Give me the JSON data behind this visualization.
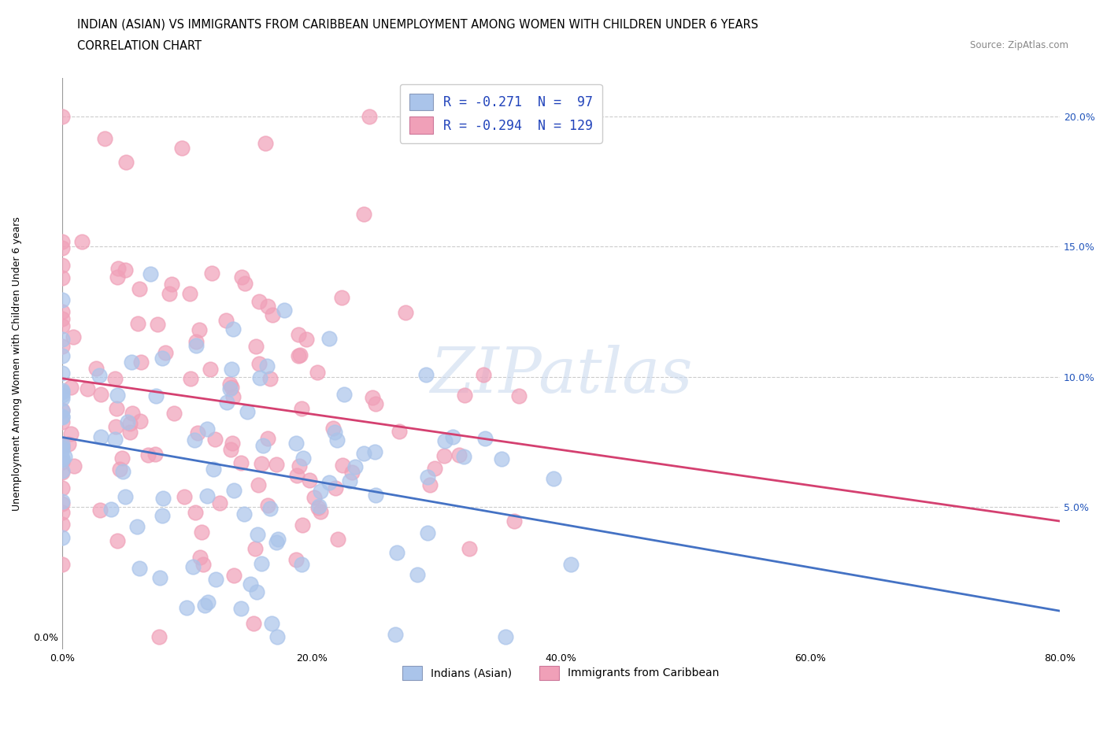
{
  "title_line1": "INDIAN (ASIAN) VS IMMIGRANTS FROM CARIBBEAN UNEMPLOYMENT AMONG WOMEN WITH CHILDREN UNDER 6 YEARS",
  "title_line2": "CORRELATION CHART",
  "source": "Source: ZipAtlas.com",
  "ylabel": "Unemployment Among Women with Children Under 6 years",
  "xlabel_ticks": [
    "0.0%",
    "20.0%",
    "40.0%",
    "60.0%",
    "80.0%"
  ],
  "ylabel_ticks_left": [
    "0.0%"
  ],
  "ylabel_ticks_left_vals": [
    0.0
  ],
  "right_yticks": [
    "5.0%",
    "10.0%",
    "15.0%",
    "20.0%"
  ],
  "right_ytick_vals": [
    0.05,
    0.1,
    0.15,
    0.2
  ],
  "legend_entries": [
    {
      "label": "R = -0.271  N =  97",
      "color": "#aec6f0"
    },
    {
      "label": "R = -0.294  N = 129",
      "color": "#f4a7b9"
    }
  ],
  "legend_labels_bottom": [
    "Indians (Asian)",
    "Immigrants from Caribbean"
  ],
  "watermark": "ZIPatlas",
  "blue_dot_color": "#aac4ea",
  "pink_dot_color": "#f0a0b8",
  "blue_line_color": "#4472c4",
  "pink_line_color": "#d44070",
  "title_fontsize": 11,
  "tick_fontsize": 9,
  "xlim": [
    0.0,
    0.8
  ],
  "ylim": [
    -0.005,
    0.215
  ],
  "xtick_vals": [
    0.0,
    0.2,
    0.4,
    0.6,
    0.8
  ],
  "grid_ytick_vals": [
    0.05,
    0.1,
    0.15,
    0.2
  ],
  "blue_line_start_y": 0.082,
  "blue_line_end_y": 0.03,
  "blue_line_cross_x": 0.72,
  "pink_line_start_y": 0.12,
  "pink_line_end_y": 0.05
}
